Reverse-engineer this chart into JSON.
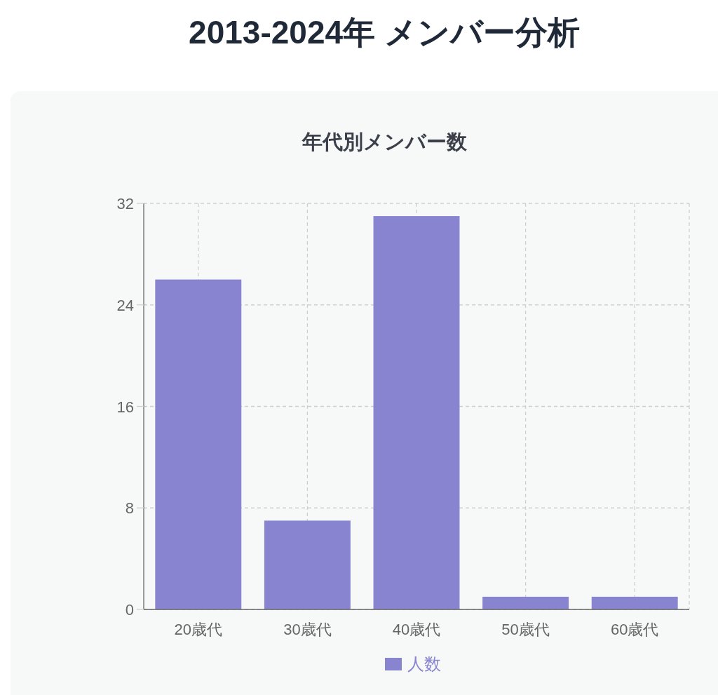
{
  "chart_data": {
    "type": "bar",
    "title": "2013-2024年 メンバー分析",
    "subtitle": "年代別メンバー数",
    "categories": [
      "20歳代",
      "30歳代",
      "40歳代",
      "50歳代",
      "60歳代"
    ],
    "series": [
      {
        "name": "人数",
        "color": "#8884d0",
        "values": [
          26,
          7,
          31,
          1,
          1
        ]
      }
    ],
    "ylim": [
      0,
      32
    ],
    "yticks": [
      0,
      8,
      16,
      24,
      32
    ],
    "grid": true,
    "legend": "bottom"
  }
}
